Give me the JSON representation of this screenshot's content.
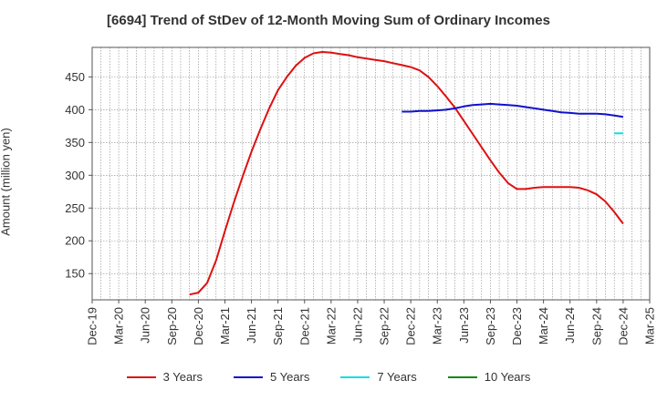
{
  "chart_data": {
    "type": "line",
    "title": "[6694]  Trend of StDev of 12-Month Moving Sum of Ordinary Incomes",
    "ylabel": "Amount (million yen)",
    "xlabel": "",
    "ylim": [
      110,
      495
    ],
    "yticks": [
      150,
      200,
      250,
      300,
      350,
      400,
      450
    ],
    "xticks": [
      "Dec-19",
      "Mar-20",
      "Jun-20",
      "Sep-20",
      "Dec-20",
      "Mar-21",
      "Jun-21",
      "Sep-21",
      "Dec-21",
      "Mar-22",
      "Jun-22",
      "Sep-22",
      "Dec-22",
      "Mar-23",
      "Jun-23",
      "Sep-23",
      "Dec-23",
      "Mar-24",
      "Jun-24",
      "Sep-24",
      "Dec-24",
      "Mar-25"
    ],
    "grid": true,
    "legend_position": "bottom",
    "series": [
      {
        "name": "3 Years",
        "color": "#dd1111",
        "x": [
          "Nov-20",
          "Dec-20",
          "Jan-21",
          "Feb-21",
          "Mar-21",
          "Apr-21",
          "May-21",
          "Jun-21",
          "Jul-21",
          "Aug-21",
          "Sep-21",
          "Oct-21",
          "Nov-21",
          "Dec-21",
          "Jan-22",
          "Feb-22",
          "Mar-22",
          "Apr-22",
          "May-22",
          "Jun-22",
          "Jul-22",
          "Aug-22",
          "Sep-22",
          "Oct-22",
          "Nov-22",
          "Dec-22",
          "Jan-23",
          "Feb-23",
          "Mar-23",
          "Apr-23",
          "May-23",
          "Jun-23",
          "Jul-23",
          "Aug-23",
          "Sep-23",
          "Oct-23",
          "Nov-23",
          "Dec-23",
          "Jan-24",
          "Feb-24",
          "Mar-24",
          "Apr-24",
          "May-24",
          "Jun-24",
          "Jul-24",
          "Aug-24",
          "Sep-24",
          "Oct-24",
          "Nov-24",
          "Dec-24"
        ],
        "values": [
          118,
          121,
          136,
          170,
          215,
          258,
          298,
          336,
          370,
          402,
          430,
          450,
          467,
          479,
          486,
          488,
          487,
          485,
          483,
          480,
          478,
          476,
          474,
          471,
          468,
          465,
          460,
          450,
          436,
          420,
          403,
          383,
          363,
          343,
          323,
          304,
          288,
          279,
          279,
          281,
          282,
          282,
          282,
          282,
          281,
          277,
          271,
          260,
          244,
          226
        ],
        "linewidth": 2
      },
      {
        "name": "5 Years",
        "color": "#1111cc",
        "x": [
          "Nov-22",
          "Dec-22",
          "Jan-23",
          "Feb-23",
          "Mar-23",
          "Apr-23",
          "May-23",
          "Jun-23",
          "Jul-23",
          "Aug-23",
          "Sep-23",
          "Oct-23",
          "Nov-23",
          "Dec-23",
          "Jan-24",
          "Feb-24",
          "Mar-24",
          "Apr-24",
          "May-24",
          "Jun-24",
          "Jul-24",
          "Aug-24",
          "Sep-24",
          "Oct-24",
          "Nov-24",
          "Dec-24"
        ],
        "values": [
          397,
          397,
          398,
          398,
          399,
          400,
          402,
          405,
          407,
          408,
          409,
          408,
          407,
          406,
          404,
          402,
          400,
          398,
          396,
          395,
          394,
          394,
          394,
          393,
          391,
          389
        ],
        "linewidth": 2
      },
      {
        "name": "7 Years",
        "color": "#11dddd",
        "x": [
          "Nov-24",
          "Dec-24"
        ],
        "values": [
          364,
          364
        ],
        "linewidth": 2
      },
      {
        "name": "10 Years",
        "color": "#118811",
        "x": [],
        "values": [],
        "linewidth": 2
      }
    ]
  }
}
